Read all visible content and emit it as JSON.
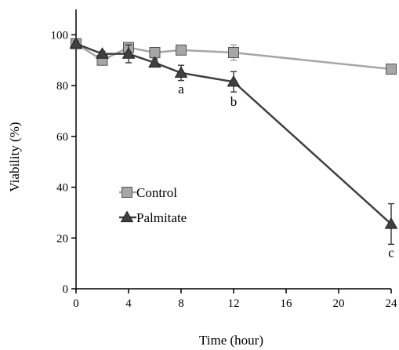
{
  "chart_data": {
    "type": "line",
    "title": "",
    "xlabel": "Time (hour)",
    "ylabel": "Viability (%)",
    "xlim": [
      0,
      24
    ],
    "ylim": [
      0,
      110
    ],
    "x_ticks": [
      0,
      4,
      8,
      12,
      16,
      20,
      24
    ],
    "y_ticks": [
      0,
      20,
      40,
      60,
      80,
      100
    ],
    "grid": false,
    "legend": "left-middle",
    "series": [
      {
        "name": "Control",
        "marker": "square",
        "color": "#a6a6a6",
        "line_color": "#a6a6a6",
        "points": [
          {
            "x": 0,
            "y": 96.5,
            "err": 1.5
          },
          {
            "x": 2,
            "y": 90,
            "err": 1.5
          },
          {
            "x": 4,
            "y": 95,
            "err": 1.5
          },
          {
            "x": 6,
            "y": 93,
            "err": 1.5
          },
          {
            "x": 8,
            "y": 94,
            "err": 1
          },
          {
            "x": 12,
            "y": 93,
            "err": 3
          },
          {
            "x": 24,
            "y": 86.5,
            "err": 1
          }
        ]
      },
      {
        "name": "Palmitate",
        "marker": "triangle",
        "color": "#404040",
        "line_color": "#404040",
        "points": [
          {
            "x": 0,
            "y": 96.5,
            "err": 1
          },
          {
            "x": 2,
            "y": 92.5,
            "err": 1
          },
          {
            "x": 4,
            "y": 92.5,
            "err": 3.5
          },
          {
            "x": 6,
            "y": 89,
            "err": 1.5
          },
          {
            "x": 8,
            "y": 85,
            "err": 3
          },
          {
            "x": 12,
            "y": 81.5,
            "err": 4
          },
          {
            "x": 24,
            "y": 25.5,
            "err": 8
          }
        ]
      }
    ],
    "annotations": [
      {
        "text": "a",
        "x": 8,
        "y": 77
      },
      {
        "text": "b",
        "x": 12,
        "y": 72
      },
      {
        "text": "c",
        "x": 24,
        "y": 12.5
      }
    ]
  }
}
